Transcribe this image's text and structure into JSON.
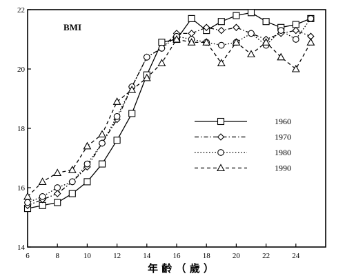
{
  "chart_data": {
    "type": "line",
    "title": "",
    "annotation": "BMI",
    "xlabel": "年 齡 （ 歲 ）",
    "ylabel": "",
    "xlim": [
      6,
      26
    ],
    "ylim": [
      14,
      22
    ],
    "xticks": [
      6,
      8,
      10,
      12,
      14,
      16,
      18,
      20,
      22,
      24
    ],
    "yticks": [
      14,
      16,
      18,
      20,
      22
    ],
    "x": [
      6,
      7,
      8,
      9,
      10,
      11,
      12,
      13,
      14,
      15,
      16,
      17,
      18,
      19,
      20,
      21,
      22,
      23,
      24,
      25
    ],
    "grid": false,
    "legend_position": "right",
    "series": [
      {
        "name": "1960",
        "marker": "square",
        "dash": "solid",
        "values": [
          15.3,
          15.4,
          15.5,
          15.8,
          16.2,
          16.8,
          17.6,
          18.5,
          19.8,
          20.9,
          21.0,
          21.7,
          21.3,
          21.6,
          21.8,
          21.9,
          21.6,
          21.4,
          21.5,
          21.7
        ]
      },
      {
        "name": "1970",
        "marker": "diamond",
        "dash": "dash-dot",
        "values": [
          15.4,
          15.6,
          15.8,
          16.2,
          16.7,
          17.5,
          18.3,
          19.4,
          20.4,
          20.7,
          21.2,
          21.2,
          21.4,
          21.3,
          21.4,
          21.2,
          21.0,
          21.2,
          21.3,
          21.1
        ]
      },
      {
        "name": "1980",
        "marker": "circle",
        "dash": "dotted",
        "values": [
          15.5,
          15.7,
          16.0,
          16.2,
          16.8,
          17.5,
          18.4,
          19.4,
          20.4,
          20.7,
          21.1,
          21.0,
          20.9,
          20.8,
          20.9,
          21.2,
          20.8,
          21.3,
          21.0,
          21.7
        ]
      },
      {
        "name": "1990",
        "marker": "triangle",
        "dash": "dashed",
        "values": [
          15.7,
          16.2,
          16.5,
          16.6,
          17.4,
          17.8,
          18.9,
          19.3,
          19.7,
          20.2,
          21.0,
          20.9,
          20.9,
          20.2,
          20.9,
          20.5,
          20.9,
          20.4,
          20.0,
          20.9
        ]
      }
    ]
  }
}
